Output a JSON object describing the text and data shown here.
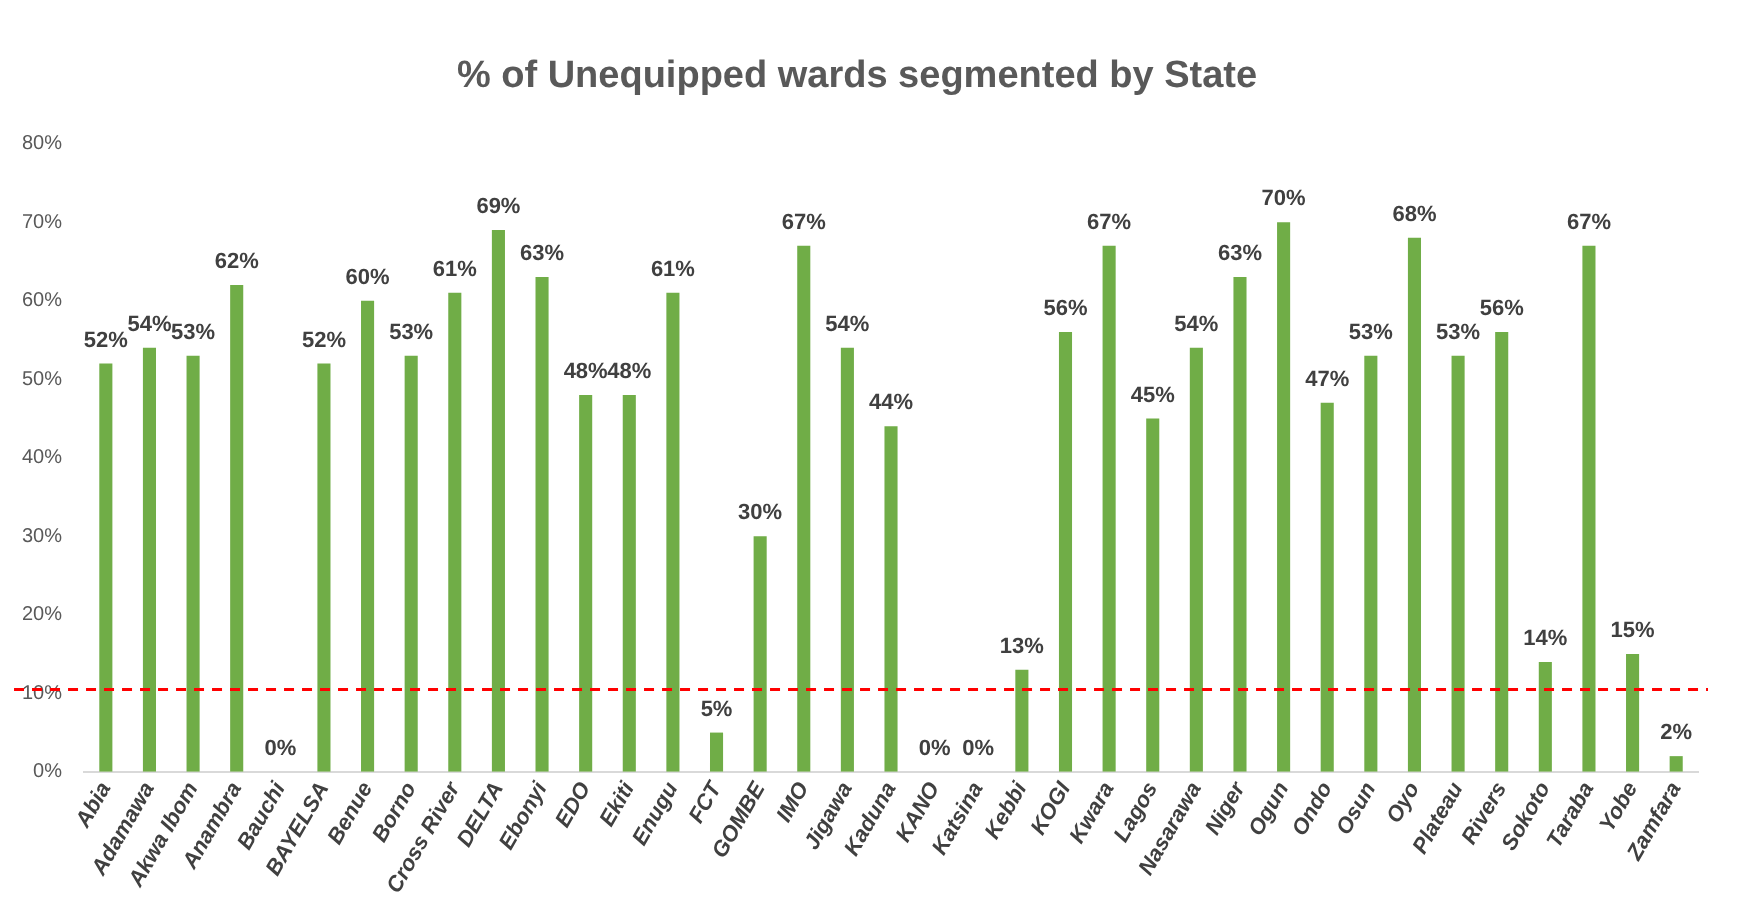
{
  "chart_data": {
    "type": "bar",
    "title": "% of Unequipped wards segmented by State",
    "categories": [
      "Abia",
      "Adamawa",
      "Akwa Ibom",
      "Anambra",
      "Bauchi",
      "BAYELSA",
      "Benue",
      "Borno",
      "Cross River",
      "DELTA",
      "Ebonyi",
      "EDO",
      "Ekiti",
      "Enugu",
      "FCT",
      "GOMBE",
      "IMO",
      "Jigawa",
      "Kaduna",
      "KANO",
      "Katsina",
      "Kebbi",
      "KOGI",
      "Kwara",
      "Lagos",
      "Nasarawa",
      "Niger",
      "Ogun",
      "Ondo",
      "Osun",
      "Oyo",
      "Plateau",
      "Rivers",
      "Sokoto",
      "Taraba",
      "Yobe",
      "Zamfara"
    ],
    "values": [
      52,
      54,
      53,
      62,
      0,
      52,
      60,
      53,
      61,
      69,
      63,
      48,
      48,
      61,
      5,
      30,
      67,
      54,
      44,
      0,
      0,
      13,
      56,
      67,
      45,
      54,
      63,
      70,
      47,
      53,
      68,
      53,
      56,
      14,
      67,
      15,
      2
    ],
    "value_labels": [
      "52%",
      "54%",
      "53%",
      "62%",
      "0%",
      "52%",
      "60%",
      "53%",
      "61%",
      "69%",
      "63%",
      "48%",
      "48%",
      "61%",
      "5%",
      "30%",
      "67%",
      "54%",
      "44%",
      "0%",
      "0%",
      "13%",
      "56%",
      "67%",
      "45%",
      "54%",
      "63%",
      "70%",
      "47%",
      "53%",
      "68%",
      "53%",
      "56%",
      "14%",
      "67%",
      "15%",
      "2%"
    ],
    "color": "#70ad47",
    "ylim": [
      0,
      80
    ],
    "yticks": [
      {
        "value": 0,
        "label": "0%"
      },
      {
        "value": 10,
        "label": "10%"
      },
      {
        "value": 20,
        "label": "20%"
      },
      {
        "value": 30,
        "label": "30%"
      },
      {
        "value": 40,
        "label": "40%"
      },
      {
        "value": 50,
        "label": "50%"
      },
      {
        "value": 60,
        "label": "60%"
      },
      {
        "value": 70,
        "label": "70%"
      },
      {
        "value": 80,
        "label": "80%"
      }
    ],
    "ref_lines": [
      {
        "axis": "y",
        "value": 10.5,
        "color": "#ff0000",
        "line_style": "dashed"
      }
    ],
    "grid": false,
    "legend": false
  }
}
